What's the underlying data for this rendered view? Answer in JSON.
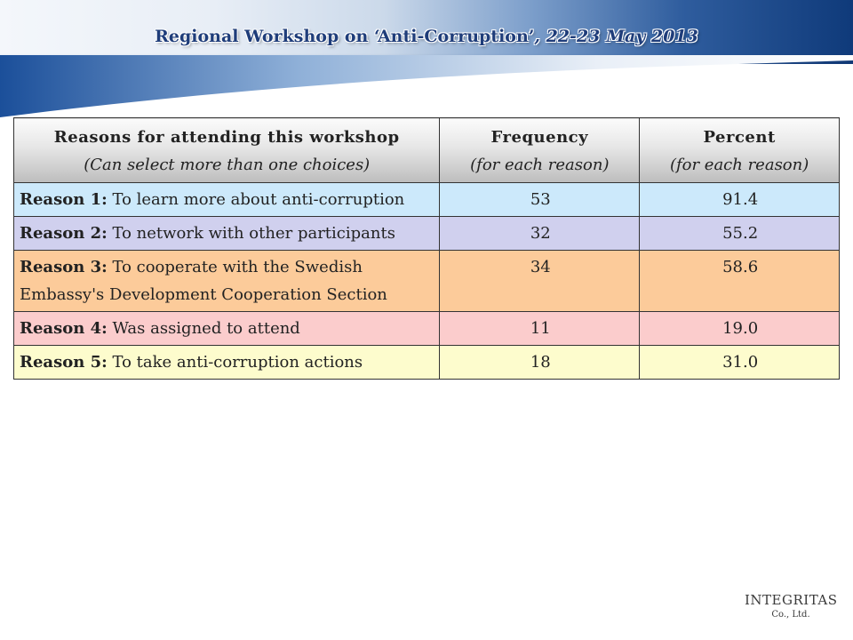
{
  "header": {
    "title_main": "Regional Workshop on ‘Anti-Corruption’",
    "title_date": ", 22-23 May 2013"
  },
  "chart_data": {
    "type": "table",
    "columns": [
      {
        "title": "Reasons for attending this workshop",
        "subtitle": "(Can select more than one choices)"
      },
      {
        "title": "Frequency",
        "subtitle": "(for each reason)"
      },
      {
        "title": "Percent",
        "subtitle": "(for each reason)"
      }
    ],
    "rows": [
      {
        "label": "Reason 1:",
        "text": " To learn more about anti-corruption",
        "frequency": "53",
        "percent": "91.4",
        "color": "#cce9fb"
      },
      {
        "label": "Reason 2:",
        "text": " To network with other participants",
        "frequency": "32",
        "percent": "55.2",
        "color": "#d0d0ee"
      },
      {
        "label": "Reason 3:",
        "text": " To cooperate with the Swedish Embassy's Development Cooperation Section",
        "frequency": "34",
        "percent": "58.6",
        "color": "#fccb9a"
      },
      {
        "label": "Reason 4:",
        "text": " Was assigned to attend",
        "frequency": "11",
        "percent": "19.0",
        "color": "#fbcccc"
      },
      {
        "label": "Reason 5:",
        "text": " To take anti-corruption actions",
        "frequency": "18",
        "percent": "31.0",
        "color": "#fdfccd"
      }
    ]
  },
  "logo": {
    "name": "INTEGRITAS",
    "suffix": "Co., Ltd."
  }
}
